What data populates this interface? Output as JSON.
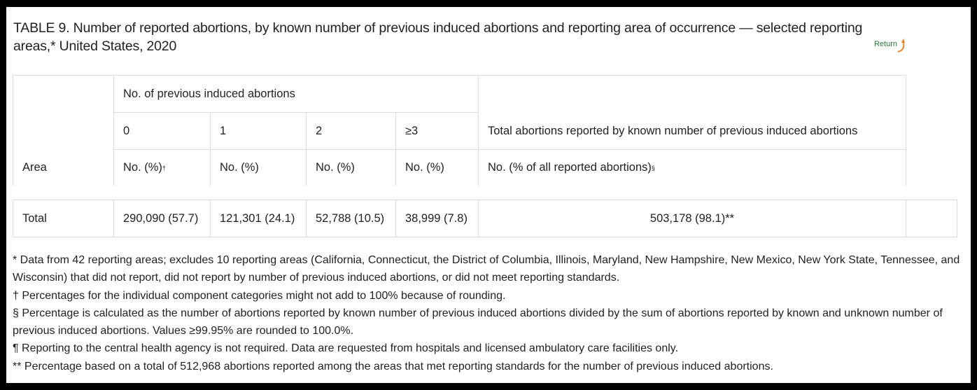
{
  "title": "TABLE 9. Number of reported abortions, by known number of previous induced abortions and reporting area of occurrence — selected reporting areas,* United States, 2020",
  "return_label": "Return",
  "table": {
    "group_header": "No. of previous induced abortions",
    "columns": [
      "0",
      "1",
      "2",
      "≥3"
    ],
    "total_header": "Total abortions reported by known number of previous induced abortions",
    "area_header": "Area",
    "units": [
      "No. (%)",
      "No. (%)",
      "No. (%)",
      "No. (%)"
    ],
    "unit0_mark": "†",
    "total_unit": "No. (% of all reported abortions)",
    "total_unit_mark": "§",
    "rows": [
      {
        "area": "Total",
        "values": [
          "290,090 (57.7)",
          "121,301 (24.1)",
          "52,788 (10.5)",
          "38,999 (7.8)"
        ],
        "total": "503,178 (98.1)**"
      }
    ]
  },
  "footnotes": [
    "* Data from 42 reporting areas; excludes 10 reporting areas (California, Connecticut, the District of Columbia, Illinois, Maryland, New Hampshire, New Mexico, New York State, Tennessee, and Wisconsin) that did not report, did not report by number of previous induced abortions, or did not meet reporting standards.",
    "† Percentages for the individual component categories might not add to 100% because of rounding.",
    "§ Percentage is calculated as the number of abortions reported by known number of previous induced abortions divided by the sum of abortions reported by known and unknown number of previous induced abortions. Values ≥99.95% are rounded to 100.0%.",
    "¶ Reporting to the central health agency is not required. Data are requested from hospitals and licensed ambulatory care facilities only.",
    "** Percentage based on a total of 512,968 abortions reported among the areas that met reporting standards for the number of previous induced abortions."
  ]
}
